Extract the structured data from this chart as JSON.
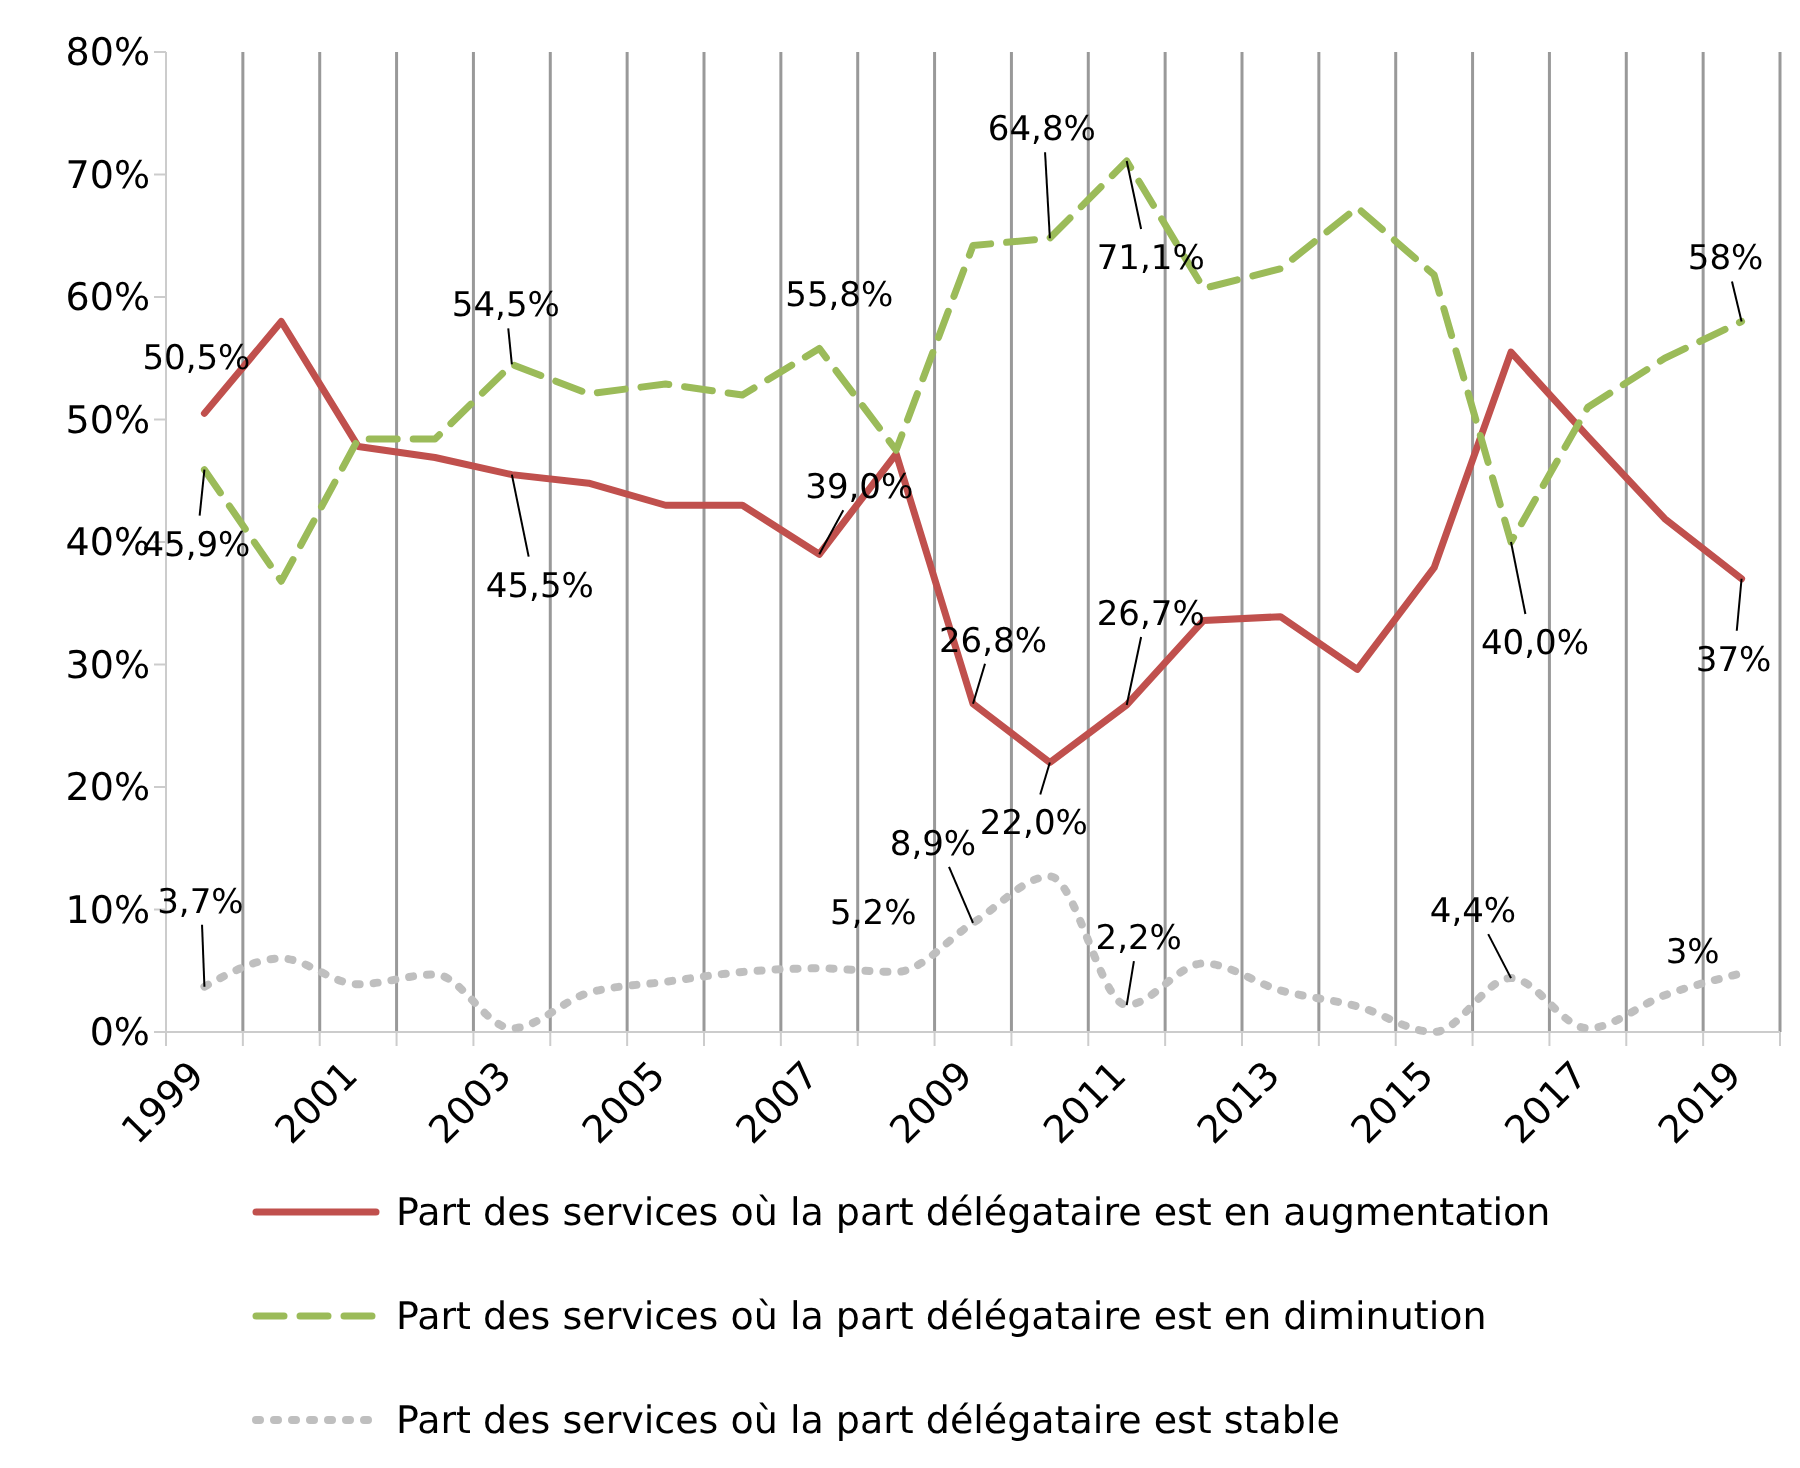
{
  "chart_data": {
    "type": "line",
    "categories": [
      "1999",
      null,
      "2001",
      null,
      "2003",
      null,
      "2005",
      null,
      "2007",
      null,
      "2009",
      null,
      "2011",
      null,
      "2013",
      null,
      "2015",
      null,
      "2017",
      null,
      "2019"
    ],
    "ylim": [
      0,
      80
    ],
    "yticks": [
      {
        "value": 0,
        "label": "0%"
      },
      {
        "value": 10,
        "label": "10%"
      },
      {
        "value": 20,
        "label": "20%"
      },
      {
        "value": 30,
        "label": "30%"
      },
      {
        "value": 40,
        "label": "40%"
      },
      {
        "value": 50,
        "label": "50%"
      },
      {
        "value": 60,
        "label": "60%"
      },
      {
        "value": 70,
        "label": "70%"
      },
      {
        "value": 80,
        "label": "80%"
      }
    ],
    "grid": "x",
    "legend": "bottom",
    "marker": "none",
    "series": [
      {
        "name": "Part des services où la part délégataire est en augmentation",
        "color": "#c0504d",
        "line_style": "solid",
        "values": [
          50.5,
          58.0,
          47.8,
          46.9,
          45.5,
          44.8,
          43.0,
          43.0,
          39.0,
          47.2,
          26.8,
          22.0,
          26.7,
          33.6,
          33.9,
          29.6,
          37.9,
          55.5,
          48.6,
          41.9,
          37
        ],
        "value_labels": [
          "50,5%",
          null,
          null,
          null,
          "45,5%",
          null,
          null,
          null,
          "39,0%",
          null,
          "26,8%",
          "22,0%",
          "26,7%",
          null,
          null,
          null,
          null,
          null,
          null,
          null,
          "37%"
        ]
      },
      {
        "name": "Part des services où la part délégataire est en diminution",
        "color": "#9bbb59",
        "line_style": "dashed",
        "values": [
          45.9,
          36.8,
          48.4,
          48.4,
          54.5,
          52.1,
          52.9,
          52.0,
          55.8,
          47.5,
          64.2,
          64.8,
          71.1,
          60.7,
          62.3,
          67.3,
          61.8,
          40.0,
          51.0,
          55.0,
          58
        ],
        "value_labels": [
          "45,9%",
          null,
          null,
          null,
          "54,5%",
          null,
          null,
          null,
          "55,8%",
          null,
          null,
          "64,8%",
          "71,1%",
          null,
          null,
          null,
          null,
          "40,0%",
          null,
          null,
          "58%"
        ]
      },
      {
        "name": "Part des services où la part délégataire est stable",
        "color": "#bfbfbf",
        "line_style": "dotted",
        "values": [
          3.7,
          6.0,
          3.9,
          4.7,
          0.3,
          3.2,
          4.1,
          4.9,
          5.2,
          4.9,
          8.9,
          12.7,
          2.2,
          5.6,
          3.4,
          2.1,
          0,
          4.4,
          0.3,
          3,
          4.8
        ],
        "value_labels": [
          "3,7%",
          null,
          null,
          null,
          null,
          null,
          null,
          null,
          "5,2%",
          null,
          "8,9%",
          null,
          "2,2%",
          null,
          null,
          null,
          null,
          "4,4%",
          null,
          "3%",
          null
        ]
      }
    ]
  }
}
